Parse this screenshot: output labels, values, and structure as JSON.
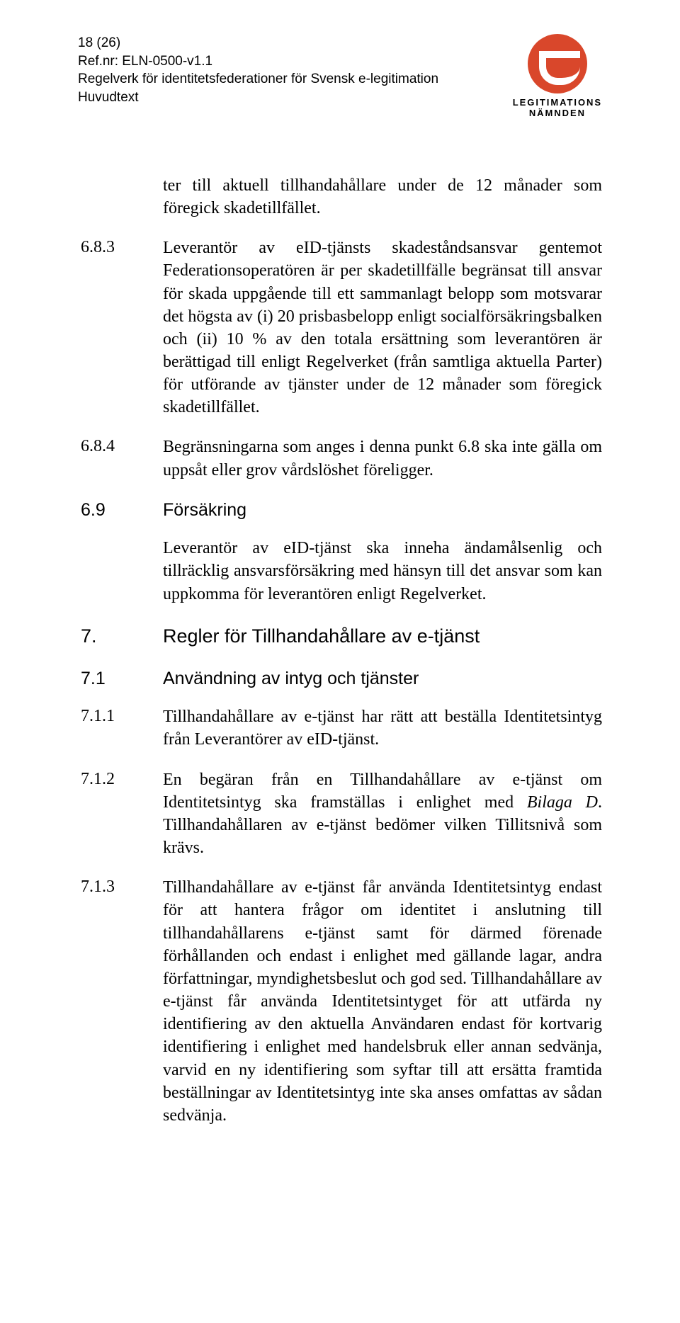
{
  "header": {
    "page_no": "18 (26)",
    "ref": "Ref.nr: ELN-0500-v1.1",
    "title": "Regelverk för identitetsfederationer för Svensk e-legitimation",
    "subtitle": "Huvudtext",
    "logo_word1": "LEGITIMATIONS",
    "logo_word2": "NÄMNDEN"
  },
  "p_intro": "ter till aktuell tillhandahållare under de 12 månader som föregick skadetillfället.",
  "s683": {
    "num": "6.8.3",
    "text": "Leverantör av eID-tjänsts skadeståndsansvar gentemot Federationsoperatören är per skadetillfälle begränsat till ansvar för skada uppgående till ett sammanlagt belopp som motsvarar det högsta av (i) 20 prisbasbelopp enligt socialförsäkringsbalken och (ii) 10 % av den totala ersättning som leverantören är berättigad till enligt Regelverket (från samtliga aktuella Parter) för utförande av tjänster under de 12 månader som föregick skadetillfället."
  },
  "s684": {
    "num": "6.8.4",
    "text": "Begränsningarna som anges i denna punkt 6.8 ska inte gälla om uppsåt eller grov vårdslöshet föreligger."
  },
  "s69": {
    "num": "6.9",
    "heading": "Försäkring",
    "text": "Leverantör av eID-tjänst ska inneha ändamålsenlig och tillräcklig ansvarsförsäkring med hänsyn till det ansvar som kan uppkomma för leverantören enligt Regelverket."
  },
  "s7": {
    "num": "7.",
    "heading": "Regler för Tillhandahållare av e-tjänst"
  },
  "s71": {
    "num": "7.1",
    "heading": "Användning av intyg och tjänster"
  },
  "s711": {
    "num": "7.1.1",
    "text": "Tillhandahållare av e-tjänst har rätt att beställa Identitetsintyg från Leverantörer av eID-tjänst."
  },
  "s712": {
    "num": "7.1.2",
    "text_a": "En begäran från en Tillhandahållare av e-tjänst om Identitetsintyg ska framställas i enlighet med ",
    "ital": "Bilaga D",
    "text_b": ". Tillhandahållaren av e-tjänst bedömer vilken Tillitsnivå som krävs."
  },
  "s713": {
    "num": "7.1.3",
    "text": "Tillhandahållare av e-tjänst får använda Identitetsintyg endast för att hantera frågor om identitet i anslutning till tillhandahållarens e-tjänst samt för därmed förenade förhållanden och endast i enlighet med gällande lagar, andra författningar, myndighetsbeslut och god sed. Tillhandahållare av e-tjänst får använda Identitetsintyget för att utfärda ny identifiering av den aktuella Användaren endast för kortvarig identifiering i enlighet med handelsbruk eller annan sedvänja, varvid en ny identifiering som syftar till att ersätta framtida beställningar av Identitetsintyg inte ska anses omfattas av sådan sedvänja."
  }
}
